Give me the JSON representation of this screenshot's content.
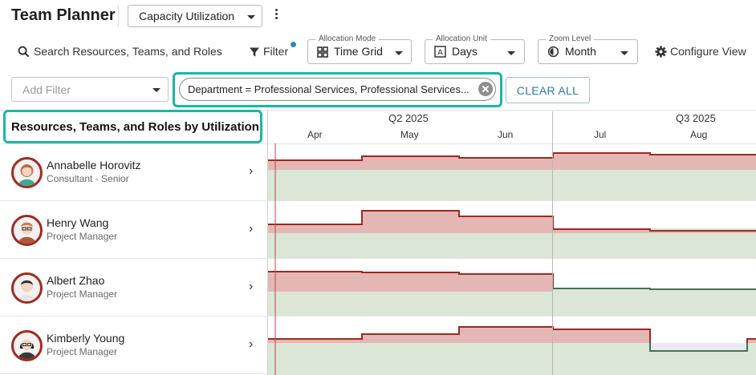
{
  "app": {
    "title": "Team Planner",
    "view_select": "Capacity Utilization",
    "more_menu_icon": "kebab-icon"
  },
  "toolbar": {
    "search_label": "Search Resources, Teams, and Roles",
    "filter_label": "Filter",
    "filter_active_dot_color": "#2b86c5",
    "allocation_mode": {
      "legend": "Allocation Mode",
      "value": "Time Grid",
      "icon": "grid-icon"
    },
    "allocation_unit": {
      "legend": "Allocation Unit",
      "value": "Days",
      "icon": "days-icon"
    },
    "zoom_level": {
      "legend": "Zoom Level",
      "value": "Month",
      "icon": "half-circle-icon"
    },
    "configure_label": "Configure View"
  },
  "filters": {
    "add_placeholder": "Add Filter",
    "active_chip": "Department = Professional Services, Professional Services...",
    "clear_all_label": "CLEAR ALL",
    "highlight_color": "#1bb6a8"
  },
  "list": {
    "header": "Resources, Teams, and Roles by Utilization"
  },
  "timeline": {
    "quarters": [
      "Q2 2025",
      "Q3 2025"
    ],
    "months": [
      "Apr",
      "May",
      "Jun",
      "Jul",
      "Aug"
    ],
    "today_marker": "Apr"
  },
  "resources": [
    {
      "name": "Annabelle Horovitz",
      "role": "Consultant - Senior"
    },
    {
      "name": "Henry Wang",
      "role": "Project Manager"
    },
    {
      "name": "Albert Zhao",
      "role": "Project Manager"
    },
    {
      "name": "Kimberly Young",
      "role": "Project Manager"
    }
  ],
  "colors": {
    "over_allocated_fill": "#e4b7b5",
    "over_allocated_line": "#9b2a1f",
    "capacity_fill": "#dce6d6",
    "under_line": "#3f7458",
    "avatar_ring": "#a02a1f",
    "today_line": "#b34a42"
  }
}
